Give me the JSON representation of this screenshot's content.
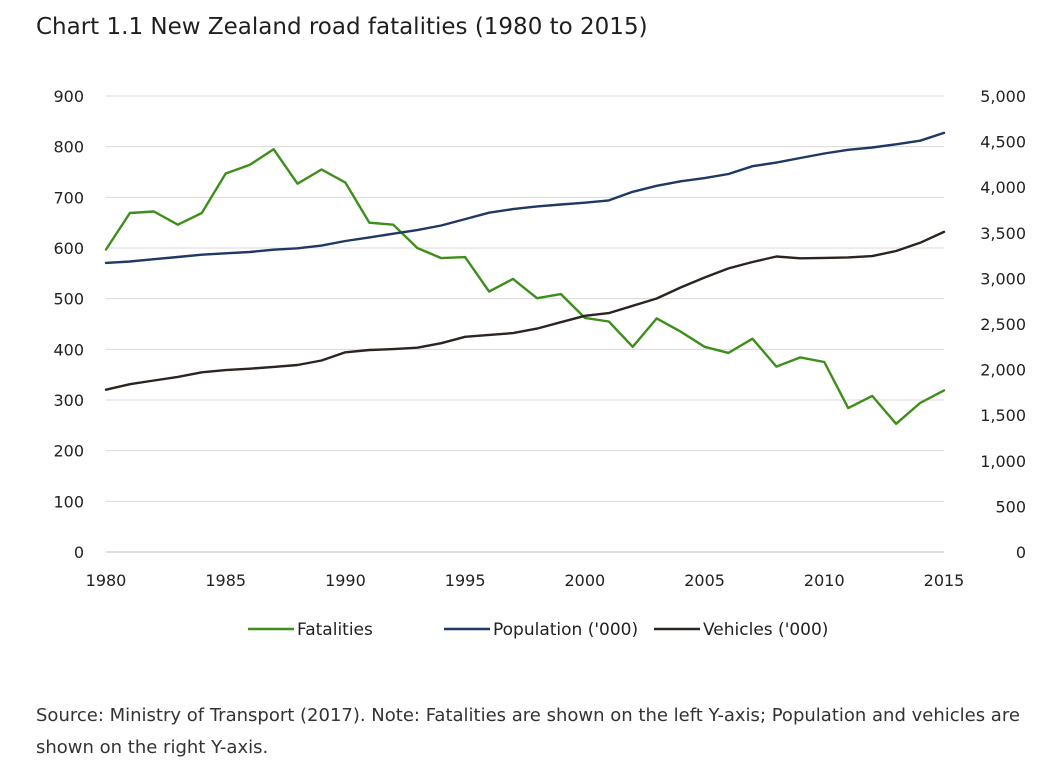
{
  "title": "Chart 1.1 New Zealand road fatalities (1980 to 2015)",
  "source": "Source: Ministry of Transport (2017). Note: Fatalities are shown on the left Y-axis; Population and vehicles are shown on the right Y-axis.",
  "chart_data": {
    "type": "line",
    "x": [
      1980,
      1981,
      1982,
      1983,
      1984,
      1985,
      1986,
      1987,
      1988,
      1989,
      1990,
      1991,
      1992,
      1993,
      1994,
      1995,
      1996,
      1997,
      1998,
      1999,
      2000,
      2001,
      2002,
      2003,
      2004,
      2005,
      2006,
      2007,
      2008,
      2009,
      2010,
      2011,
      2012,
      2013,
      2014,
      2015
    ],
    "xticks": [
      1980,
      1985,
      1990,
      1995,
      2000,
      2005,
      2010,
      2015
    ],
    "xtick_labels": [
      "1980",
      "1985",
      "1990",
      "1995",
      "2000",
      "2005",
      "2010",
      "2015"
    ],
    "y_left": {
      "lim": [
        0,
        900
      ],
      "ticks": [
        0,
        100,
        200,
        300,
        400,
        500,
        600,
        700,
        800,
        900
      ],
      "tick_labels": [
        "0",
        "100",
        "200",
        "300",
        "400",
        "500",
        "600",
        "700",
        "800",
        "900"
      ]
    },
    "y_right": {
      "lim": [
        0,
        5000
      ],
      "ticks": [
        0,
        500,
        1000,
        1500,
        2000,
        2500,
        3000,
        3500,
        4000,
        4500,
        5000
      ],
      "tick_labels": [
        "0",
        "500",
        "1,000",
        "1,500",
        "2,000",
        "2,500",
        "3,000",
        "3,500",
        "4,000",
        "4,500",
        "5,000"
      ]
    },
    "grid": true,
    "legend_position": "bottom",
    "series": [
      {
        "name": "Fatalities",
        "axis": "left",
        "color": "#3e8e1c",
        "values": [
          597,
          669,
          672,
          646,
          669,
          747,
          764,
          795,
          727,
          755,
          729,
          650,
          646,
          600,
          580,
          582,
          514,
          539,
          501,
          509,
          462,
          455,
          405,
          461,
          435,
          405,
          393,
          421,
          366,
          384,
          375,
          284,
          308,
          253,
          294,
          319
        ]
      },
      {
        "name": "Population ('000)",
        "axis": "right",
        "color": "#1f3864",
        "values": [
          3170,
          3185,
          3210,
          3235,
          3260,
          3275,
          3290,
          3315,
          3330,
          3360,
          3410,
          3450,
          3490,
          3530,
          3580,
          3650,
          3720,
          3760,
          3790,
          3810,
          3830,
          3855,
          3950,
          4015,
          4065,
          4100,
          4145,
          4230,
          4270,
          4320,
          4370,
          4410,
          4435,
          4470,
          4510,
          4595
        ]
      },
      {
        "name": "Vehicles ('000)",
        "axis": "right",
        "color": "#2b2420",
        "values": [
          1780,
          1840,
          1880,
          1920,
          1970,
          1995,
          2010,
          2030,
          2050,
          2100,
          2190,
          2215,
          2225,
          2240,
          2290,
          2360,
          2380,
          2400,
          2450,
          2520,
          2590,
          2620,
          2700,
          2780,
          2900,
          3010,
          3110,
          3180,
          3240,
          3220,
          3225,
          3230,
          3245,
          3300,
          3390,
          3510
        ]
      }
    ]
  }
}
